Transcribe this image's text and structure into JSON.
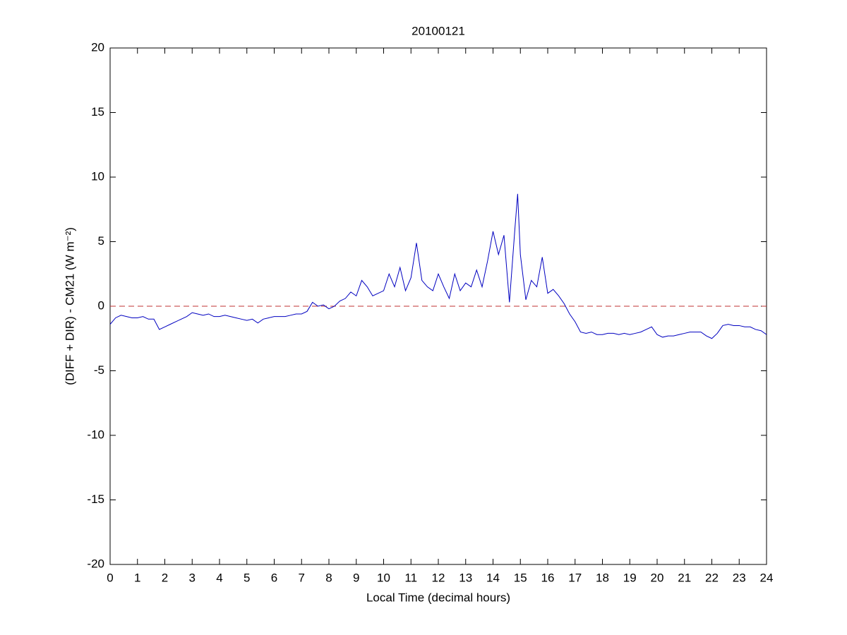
{
  "chart_data": {
    "type": "line",
    "title": "20100121",
    "xlabel": "Local Time (decimal hours)",
    "ylabel": "(DIFF + DIR) - CM21 (W m⁻²)",
    "x": [
      0,
      0.2,
      0.4,
      0.6,
      0.8,
      1,
      1.2,
      1.4,
      1.6,
      1.8,
      2,
      2.2,
      2.4,
      2.6,
      2.8,
      3,
      3.2,
      3.4,
      3.6,
      3.8,
      4,
      4.2,
      4.4,
      4.6,
      4.8,
      5,
      5.2,
      5.4,
      5.6,
      5.8,
      6,
      6.2,
      6.4,
      6.6,
      6.8,
      7,
      7.2,
      7.4,
      7.6,
      7.8,
      8,
      8.2,
      8.4,
      8.6,
      8.8,
      9,
      9.2,
      9.4,
      9.6,
      9.8,
      10,
      10.2,
      10.4,
      10.6,
      10.8,
      11,
      11.2,
      11.4,
      11.6,
      11.8,
      12,
      12.2,
      12.4,
      12.6,
      12.8,
      13,
      13.2,
      13.4,
      13.6,
      13.8,
      14,
      14.2,
      14.4,
      14.6,
      14.8,
      14.9,
      15,
      15.2,
      15.4,
      15.6,
      15.8,
      16,
      16.2,
      16.4,
      16.6,
      16.8,
      17,
      17.2,
      17.4,
      17.6,
      17.8,
      18,
      18.2,
      18.4,
      18.6,
      18.8,
      19,
      19.2,
      19.4,
      19.6,
      19.8,
      20,
      20.2,
      20.4,
      20.6,
      20.8,
      21,
      21.2,
      21.4,
      21.6,
      21.8,
      22,
      22.2,
      22.4,
      22.6,
      22.8,
      23,
      23.2,
      23.4,
      23.6,
      23.8,
      24
    ],
    "series": [
      {
        "color": "#0000c0",
        "values": [
          -1.4,
          -0.9,
          -0.7,
          -0.8,
          -0.9,
          -0.9,
          -0.8,
          -1.0,
          -1.0,
          -1.8,
          -1.6,
          -1.4,
          -1.2,
          -1.0,
          -0.8,
          -0.5,
          -0.6,
          -0.7,
          -0.6,
          -0.8,
          -0.8,
          -0.7,
          -0.8,
          -0.9,
          -1.0,
          -1.1,
          -1.0,
          -1.3,
          -1.0,
          -0.9,
          -0.8,
          -0.8,
          -0.8,
          -0.7,
          -0.6,
          -0.6,
          -0.4,
          0.3,
          0.0,
          0.1,
          -0.2,
          0.0,
          0.4,
          0.6,
          1.1,
          0.8,
          2.0,
          1.5,
          0.8,
          1.0,
          1.2,
          2.5,
          1.5,
          3.0,
          1.2,
          2.2,
          4.9,
          2.0,
          1.5,
          1.2,
          2.5,
          1.5,
          0.6,
          2.5,
          1.2,
          1.8,
          1.5,
          2.8,
          1.5,
          3.5,
          5.8,
          4.0,
          5.5,
          0.3,
          6.0,
          8.7,
          4.0,
          0.5,
          2.0,
          1.5,
          3.8,
          1.0,
          1.3,
          0.8,
          0.2,
          -0.6,
          -1.2,
          -2.0,
          -2.1,
          -2.0,
          -2.2,
          -2.2,
          -2.1,
          -2.1,
          -2.2,
          -2.1,
          -2.2,
          -2.1,
          -2.0,
          -1.8,
          -1.6,
          -2.2,
          -2.4,
          -2.3,
          -2.3,
          -2.2,
          -2.1,
          -2.0,
          -2.0,
          -2.0,
          -2.3,
          -2.5,
          -2.1,
          -1.5,
          -1.4,
          -1.5,
          -1.5,
          -1.6,
          -1.6,
          -1.8,
          -1.9,
          -2.2
        ]
      }
    ],
    "hline": {
      "value": 0,
      "color": "#c03030"
    },
    "xlim": [
      0,
      24
    ],
    "xticks": [
      0,
      1,
      2,
      3,
      4,
      5,
      6,
      7,
      8,
      9,
      10,
      11,
      12,
      13,
      14,
      15,
      16,
      17,
      18,
      19,
      20,
      21,
      22,
      23,
      24
    ],
    "ylim": [
      -20,
      20
    ],
    "yticks": [
      -20,
      -15,
      -10,
      -5,
      0,
      5,
      10,
      15,
      20
    ],
    "grid": false
  }
}
